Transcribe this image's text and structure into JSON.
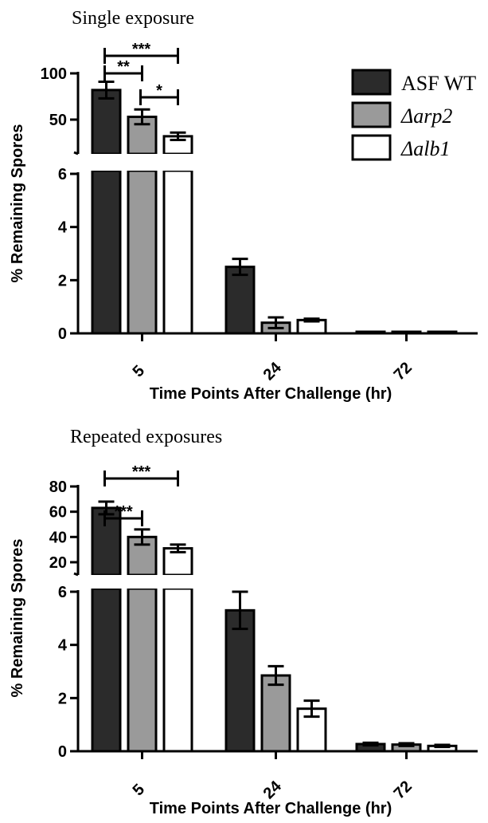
{
  "legend": [
    {
      "name": "ASF WT",
      "style": "normal",
      "fill": "#2b2b2b"
    },
    {
      "name": "Δarp2",
      "style": "italic",
      "fill": "#9a9a9a"
    },
    {
      "name": "Δalb1",
      "style": "italic",
      "fill": "#ffffff"
    }
  ],
  "chart_data": [
    {
      "type": "bar",
      "title": "Single exposure",
      "xlabel": "Time Points After Challenge (hr)",
      "ylabel": "% Remaining Spores",
      "categories": [
        "5",
        "24",
        "72"
      ],
      "y_axis_broken": true,
      "ylim_lower": [
        0,
        6
      ],
      "ylim_upper": [
        30,
        100
      ],
      "yticks_lower": [
        "0",
        "2",
        "4",
        "6"
      ],
      "yticks_upper": [
        "50",
        "100"
      ],
      "series": [
        {
          "name": "ASF WT",
          "values": [
            82,
            2.5,
            0.04
          ],
          "errors": [
            9,
            0.3,
            0.02
          ]
        },
        {
          "name": "Δarp2",
          "values": [
            53,
            0.4,
            0
          ],
          "errors": [
            8,
            0.2,
            0
          ]
        },
        {
          "name": "Δalb1",
          "values": [
            32,
            0.5,
            0.02
          ],
          "errors": [
            4,
            0.05,
            0.01
          ]
        }
      ],
      "significance": [
        {
          "from": 0,
          "to": 1,
          "label": "**"
        },
        {
          "from": 1,
          "to": 2,
          "label": "*"
        },
        {
          "from": 0,
          "to": 2,
          "label": "***"
        }
      ]
    },
    {
      "type": "bar",
      "title": "Repeated exposures",
      "xlabel": "Time Points After Challenge (hr)",
      "ylabel": "% Remaining Spores",
      "categories": [
        "5",
        "24",
        "72"
      ],
      "y_axis_broken": true,
      "ylim_lower": [
        0,
        6
      ],
      "ylim_upper": [
        15,
        80
      ],
      "yticks_lower": [
        "0",
        "2",
        "4",
        "6"
      ],
      "yticks_upper": [
        "20",
        "40",
        "60",
        "80"
      ],
      "series": [
        {
          "name": "ASF WT",
          "values": [
            63,
            5.3,
            0.27
          ],
          "errors": [
            5,
            0.7,
            0.05
          ]
        },
        {
          "name": "Δarp2",
          "values": [
            40,
            2.85,
            0.25
          ],
          "errors": [
            6,
            0.35,
            0.05
          ]
        },
        {
          "name": "Δalb1",
          "values": [
            31,
            1.6,
            0.2
          ],
          "errors": [
            3,
            0.3,
            0.04
          ]
        }
      ],
      "significance": [
        {
          "from": 0,
          "to": 1,
          "label": "***"
        },
        {
          "from": 0,
          "to": 2,
          "label": "***"
        }
      ]
    }
  ]
}
